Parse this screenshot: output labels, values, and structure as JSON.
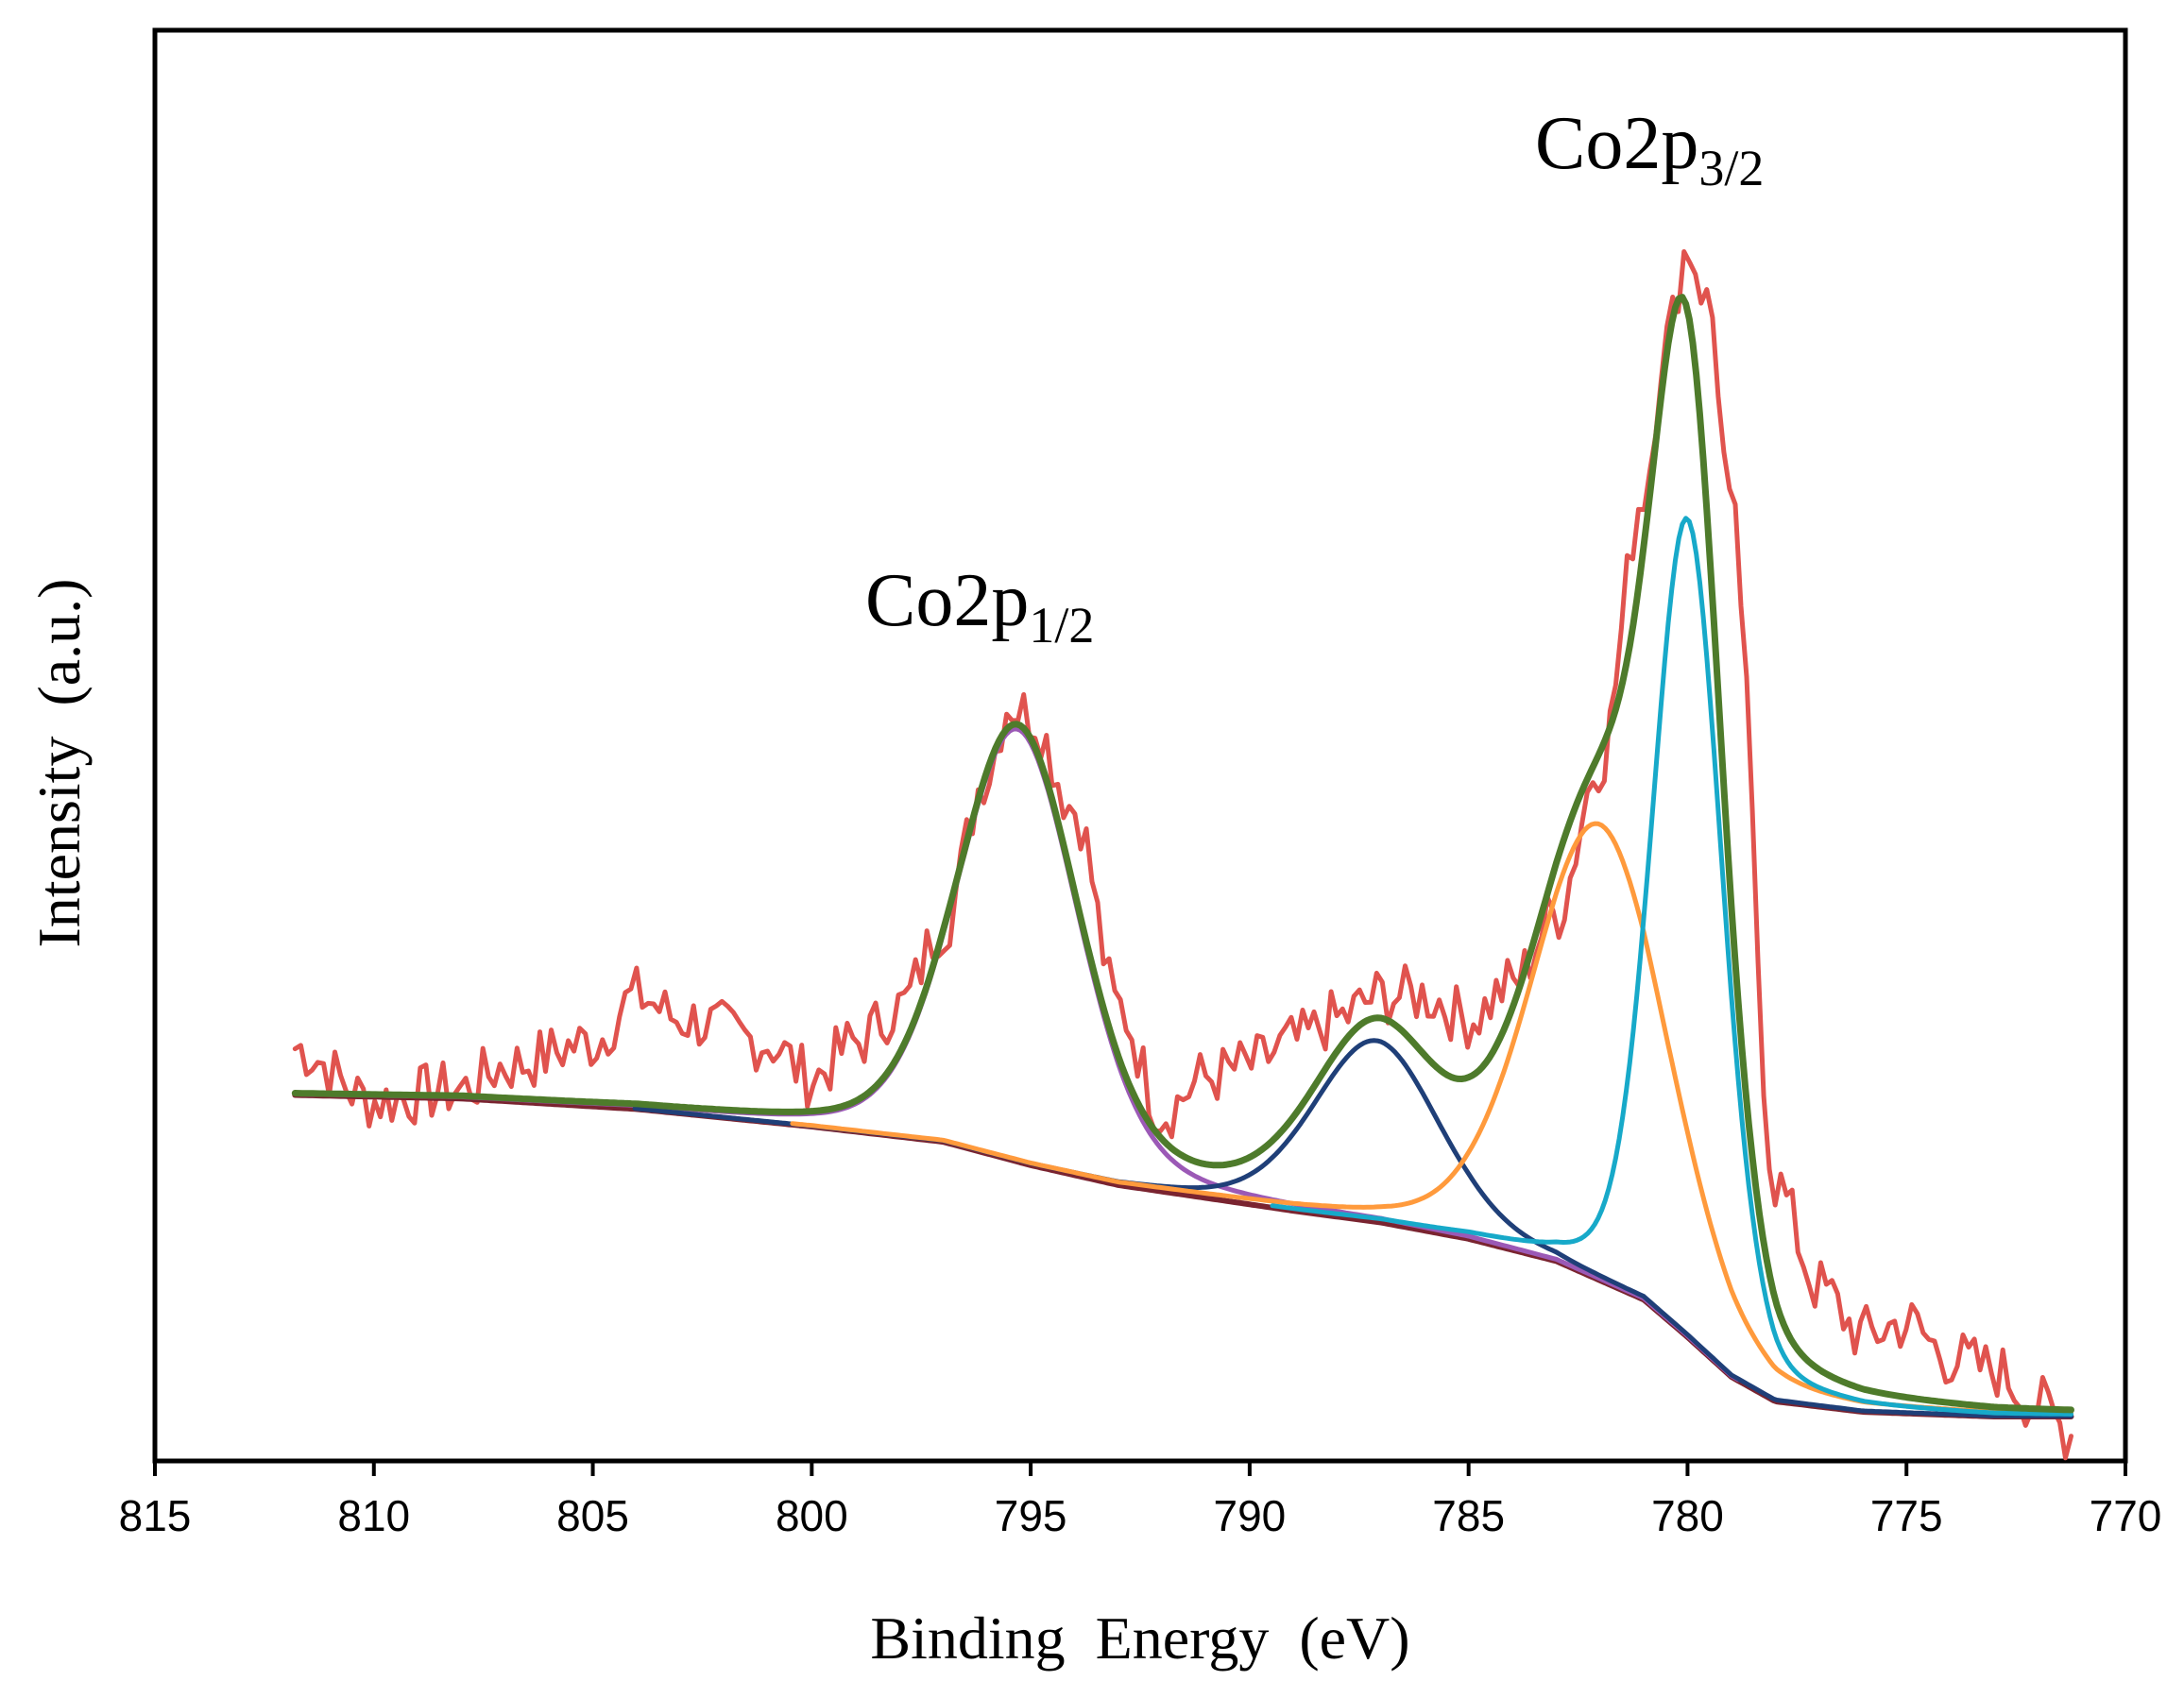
{
  "chart_data": {
    "type": "line",
    "title": "",
    "xlabel": "Binding  Energy  (eV)",
    "ylabel": "Intensity  (a.u.)",
    "xlim": [
      815,
      770
    ],
    "x_reversed": true,
    "ylim": [
      0,
      100
    ],
    "y_ticks_shown": false,
    "grid": false,
    "legend": "none",
    "x_ticks": [
      815,
      810,
      805,
      800,
      795,
      790,
      785,
      780,
      775,
      770
    ],
    "annotations": [
      {
        "main": "Co2p",
        "sub": "1/2",
        "x": 796.5,
        "y": 70
      },
      {
        "main": "Co2p",
        "sub": "3/2",
        "x": 780.8,
        "y": 107
      }
    ],
    "background": {
      "name": "background",
      "color": "#7a2430",
      "points": [
        [
          811.8,
          27.5
        ],
        [
          808,
          27.2
        ],
        [
          804,
          26.3
        ],
        [
          800,
          24.8
        ],
        [
          797,
          23.5
        ],
        [
          795,
          21.5
        ],
        [
          793,
          19.8
        ],
        [
          791,
          18.7
        ],
        [
          789,
          17.6
        ],
        [
          787,
          16.6
        ],
        [
          785,
          15.2
        ],
        [
          783,
          13.3
        ],
        [
          781,
          10.0
        ],
        [
          780,
          6.8
        ],
        [
          779,
          3.4
        ],
        [
          778,
          1.3
        ],
        [
          776,
          0.4
        ],
        [
          773,
          0.0
        ],
        [
          771,
          0.0
        ]
      ]
    },
    "components": [
      {
        "name": "Co2p1/2 component",
        "color": "#9b59b6",
        "center": 795.3,
        "height": 37,
        "fwhm": 3.3
      },
      {
        "name": "satellite component",
        "color": "#1f3f78",
        "center": 787.1,
        "height": 15.5,
        "fwhm": 3.4
      },
      {
        "name": "Co2p3/2 satellite component",
        "color": "#ff9a3c",
        "center": 782.0,
        "height": 39,
        "fwhm": 3.7
      },
      {
        "name": "Co2p3/2 main component",
        "color": "#17a9c9",
        "center": 780.0,
        "height": 70,
        "fwhm": 1.9
      }
    ],
    "envelope": {
      "name": "fitted envelope",
      "color": "#4e7b2b"
    },
    "raw": {
      "name": "raw spectrum",
      "color": "#e0534e",
      "anchors": [
        [
          811.8,
          31.5
        ],
        [
          810,
          27
        ],
        [
          808,
          28
        ],
        [
          807,
          30
        ],
        [
          805,
          32
        ],
        [
          804,
          36
        ],
        [
          803,
          34
        ],
        [
          801,
          32
        ],
        [
          800,
          29
        ],
        [
          799,
          32
        ],
        [
          798,
          35
        ],
        [
          797,
          42
        ],
        [
          796,
          55
        ],
        [
          795.5,
          61
        ],
        [
          795,
          60
        ],
        [
          794,
          52
        ],
        [
          793,
          35
        ],
        [
          792,
          26
        ],
        [
          791,
          29
        ],
        [
          790,
          30
        ],
        [
          789,
          32
        ],
        [
          788,
          34
        ],
        [
          787,
          36
        ],
        [
          786,
          36
        ],
        [
          785,
          34
        ],
        [
          784,
          37
        ],
        [
          783,
          43
        ],
        [
          782,
          56
        ],
        [
          781,
          79
        ],
        [
          780.5,
          92
        ],
        [
          780,
          100
        ],
        [
          779.5,
          95
        ],
        [
          779,
          77
        ],
        [
          778,
          20
        ],
        [
          777,
          11
        ],
        [
          776,
          7
        ],
        [
          775,
          8
        ],
        [
          774,
          5
        ],
        [
          773,
          4
        ],
        [
          772,
          1
        ],
        [
          771.2,
          -1.5
        ]
      ]
    }
  }
}
